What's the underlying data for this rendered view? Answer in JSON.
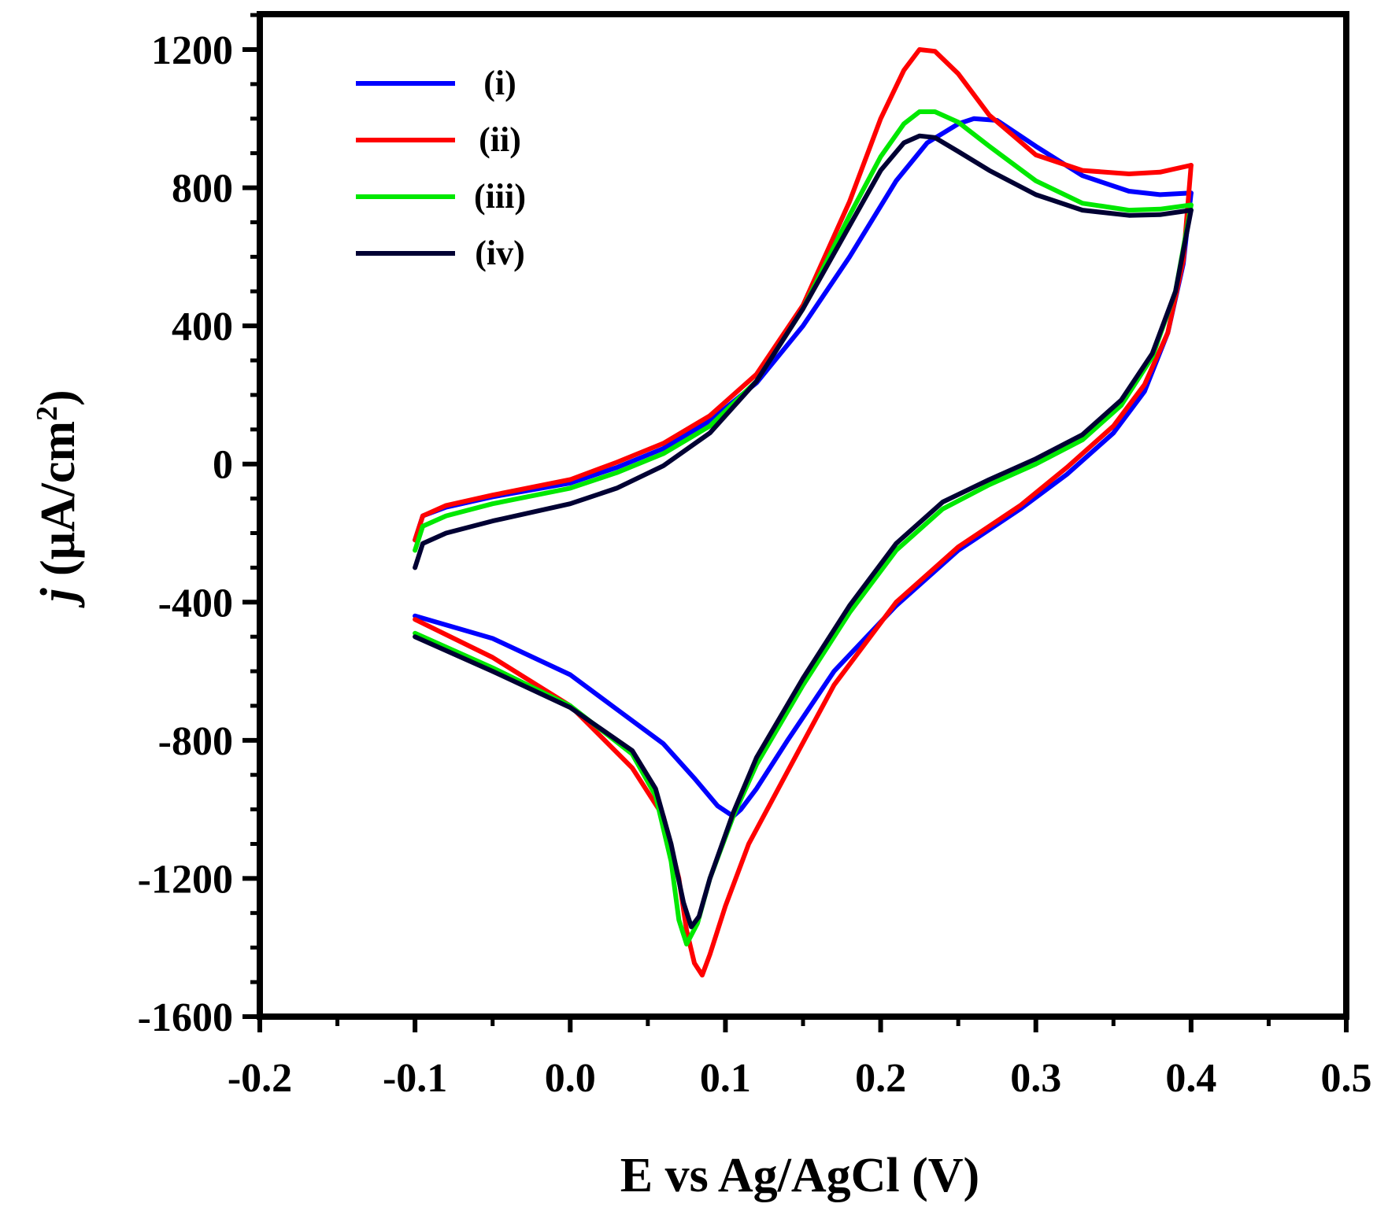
{
  "chart_data": {
    "type": "line",
    "title": "",
    "xlabel": "E vs Ag/AgCl (V)",
    "ylabel_italic": "j",
    "ylabel_units": " (μA/cm",
    "ylabel_superscript": "2",
    "ylabel_close": ")",
    "xlim": [
      -0.2,
      0.5
    ],
    "ylim": [
      -1600,
      1300
    ],
    "x_ticks": [
      -0.2,
      -0.1,
      0.0,
      0.1,
      0.2,
      0.3,
      0.4,
      0.5
    ],
    "x_tick_labels": [
      "-0.2",
      "-0.1",
      "0.0",
      "0.1",
      "0.2",
      "0.3",
      "0.4",
      "0.5"
    ],
    "y_ticks": [
      -1600,
      -1200,
      -800,
      -400,
      0,
      400,
      800,
      1200
    ],
    "y_tick_labels": [
      "-1600",
      "-1200",
      "-800",
      "-400",
      "0",
      "400",
      "800",
      "1200"
    ],
    "legend_position": "top-left",
    "series": [
      {
        "name": "(i)",
        "color": "#0000ff",
        "forward": [
          [
            -0.1,
            -220
          ],
          [
            -0.095,
            -150
          ],
          [
            -0.08,
            -125
          ],
          [
            -0.05,
            -95
          ],
          [
            0.0,
            -55
          ],
          [
            0.03,
            -10
          ],
          [
            0.06,
            45
          ],
          [
            0.09,
            125
          ],
          [
            0.12,
            235
          ],
          [
            0.15,
            400
          ],
          [
            0.18,
            600
          ],
          [
            0.21,
            820
          ],
          [
            0.23,
            930
          ],
          [
            0.25,
            985
          ],
          [
            0.26,
            1000
          ],
          [
            0.275,
            995
          ],
          [
            0.3,
            920
          ],
          [
            0.33,
            835
          ],
          [
            0.36,
            790
          ],
          [
            0.38,
            780
          ],
          [
            0.4,
            785
          ]
        ],
        "reverse": [
          [
            0.4,
            785
          ],
          [
            0.395,
            580
          ],
          [
            0.385,
            380
          ],
          [
            0.37,
            210
          ],
          [
            0.35,
            90
          ],
          [
            0.32,
            -30
          ],
          [
            0.29,
            -130
          ],
          [
            0.25,
            -250
          ],
          [
            0.21,
            -410
          ],
          [
            0.17,
            -600
          ],
          [
            0.14,
            -800
          ],
          [
            0.12,
            -940
          ],
          [
            0.11,
            -1000
          ],
          [
            0.105,
            -1020
          ],
          [
            0.095,
            -990
          ],
          [
            0.08,
            -910
          ],
          [
            0.06,
            -810
          ],
          [
            0.03,
            -710
          ],
          [
            0.0,
            -610
          ],
          [
            -0.05,
            -505
          ],
          [
            -0.1,
            -440
          ]
        ]
      },
      {
        "name": "(ii)",
        "color": "#ff0000",
        "forward": [
          [
            -0.1,
            -220
          ],
          [
            -0.095,
            -150
          ],
          [
            -0.08,
            -120
          ],
          [
            -0.05,
            -90
          ],
          [
            0.0,
            -45
          ],
          [
            0.03,
            5
          ],
          [
            0.06,
            60
          ],
          [
            0.09,
            140
          ],
          [
            0.12,
            260
          ],
          [
            0.15,
            460
          ],
          [
            0.18,
            760
          ],
          [
            0.2,
            1000
          ],
          [
            0.215,
            1140
          ],
          [
            0.225,
            1200
          ],
          [
            0.235,
            1195
          ],
          [
            0.25,
            1130
          ],
          [
            0.27,
            1010
          ],
          [
            0.3,
            895
          ],
          [
            0.33,
            850
          ],
          [
            0.36,
            840
          ],
          [
            0.38,
            845
          ],
          [
            0.4,
            865
          ]
        ],
        "reverse": [
          [
            0.4,
            865
          ],
          [
            0.395,
            590
          ],
          [
            0.385,
            380
          ],
          [
            0.37,
            230
          ],
          [
            0.35,
            110
          ],
          [
            0.32,
            -10
          ],
          [
            0.29,
            -120
          ],
          [
            0.25,
            -240
          ],
          [
            0.21,
            -400
          ],
          [
            0.17,
            -640
          ],
          [
            0.14,
            -890
          ],
          [
            0.115,
            -1100
          ],
          [
            0.1,
            -1280
          ],
          [
            0.09,
            -1420
          ],
          [
            0.085,
            -1480
          ],
          [
            0.08,
            -1445
          ],
          [
            0.075,
            -1350
          ],
          [
            0.07,
            -1200
          ],
          [
            0.06,
            -1020
          ],
          [
            0.04,
            -880
          ],
          [
            0.0,
            -700
          ],
          [
            -0.05,
            -560
          ],
          [
            -0.1,
            -450
          ]
        ]
      },
      {
        "name": "(iii)",
        "color": "#00e800",
        "forward": [
          [
            -0.1,
            -250
          ],
          [
            -0.095,
            -180
          ],
          [
            -0.08,
            -150
          ],
          [
            -0.05,
            -115
          ],
          [
            0.0,
            -70
          ],
          [
            0.03,
            -25
          ],
          [
            0.06,
            30
          ],
          [
            0.09,
            110
          ],
          [
            0.12,
            240
          ],
          [
            0.15,
            450
          ],
          [
            0.18,
            720
          ],
          [
            0.2,
            890
          ],
          [
            0.215,
            985
          ],
          [
            0.225,
            1020
          ],
          [
            0.235,
            1020
          ],
          [
            0.25,
            990
          ],
          [
            0.27,
            920
          ],
          [
            0.3,
            820
          ],
          [
            0.33,
            755
          ],
          [
            0.36,
            735
          ],
          [
            0.38,
            738
          ],
          [
            0.4,
            750
          ]
        ],
        "reverse": [
          [
            0.4,
            750
          ],
          [
            0.39,
            500
          ],
          [
            0.375,
            310
          ],
          [
            0.355,
            170
          ],
          [
            0.33,
            70
          ],
          [
            0.3,
            0
          ],
          [
            0.27,
            -60
          ],
          [
            0.24,
            -130
          ],
          [
            0.21,
            -250
          ],
          [
            0.18,
            -430
          ],
          [
            0.15,
            -640
          ],
          [
            0.12,
            -870
          ],
          [
            0.105,
            -1020
          ],
          [
            0.09,
            -1200
          ],
          [
            0.082,
            -1330
          ],
          [
            0.075,
            -1390
          ],
          [
            0.07,
            -1320
          ],
          [
            0.065,
            -1150
          ],
          [
            0.055,
            -960
          ],
          [
            0.04,
            -840
          ],
          [
            0.0,
            -700
          ],
          [
            -0.05,
            -590
          ],
          [
            -0.1,
            -490
          ]
        ]
      },
      {
        "name": "(iv)",
        "color": "#000033",
        "forward": [
          [
            -0.1,
            -300
          ],
          [
            -0.095,
            -230
          ],
          [
            -0.08,
            -200
          ],
          [
            -0.05,
            -165
          ],
          [
            0.0,
            -115
          ],
          [
            0.03,
            -70
          ],
          [
            0.06,
            -5
          ],
          [
            0.09,
            90
          ],
          [
            0.12,
            240
          ],
          [
            0.15,
            450
          ],
          [
            0.18,
            690
          ],
          [
            0.2,
            850
          ],
          [
            0.215,
            930
          ],
          [
            0.225,
            950
          ],
          [
            0.235,
            945
          ],
          [
            0.25,
            905
          ],
          [
            0.27,
            850
          ],
          [
            0.3,
            780
          ],
          [
            0.33,
            735
          ],
          [
            0.36,
            720
          ],
          [
            0.38,
            722
          ],
          [
            0.4,
            735
          ]
        ],
        "reverse": [
          [
            0.4,
            735
          ],
          [
            0.39,
            500
          ],
          [
            0.375,
            320
          ],
          [
            0.355,
            185
          ],
          [
            0.33,
            85
          ],
          [
            0.3,
            15
          ],
          [
            0.27,
            -45
          ],
          [
            0.24,
            -110
          ],
          [
            0.21,
            -230
          ],
          [
            0.18,
            -410
          ],
          [
            0.15,
            -620
          ],
          [
            0.12,
            -850
          ],
          [
            0.105,
            -1010
          ],
          [
            0.09,
            -1200
          ],
          [
            0.083,
            -1310
          ],
          [
            0.078,
            -1340
          ],
          [
            0.073,
            -1270
          ],
          [
            0.065,
            -1100
          ],
          [
            0.055,
            -940
          ],
          [
            0.04,
            -830
          ],
          [
            0.0,
            -705
          ],
          [
            -0.05,
            -600
          ],
          [
            -0.1,
            -500
          ]
        ]
      }
    ]
  }
}
